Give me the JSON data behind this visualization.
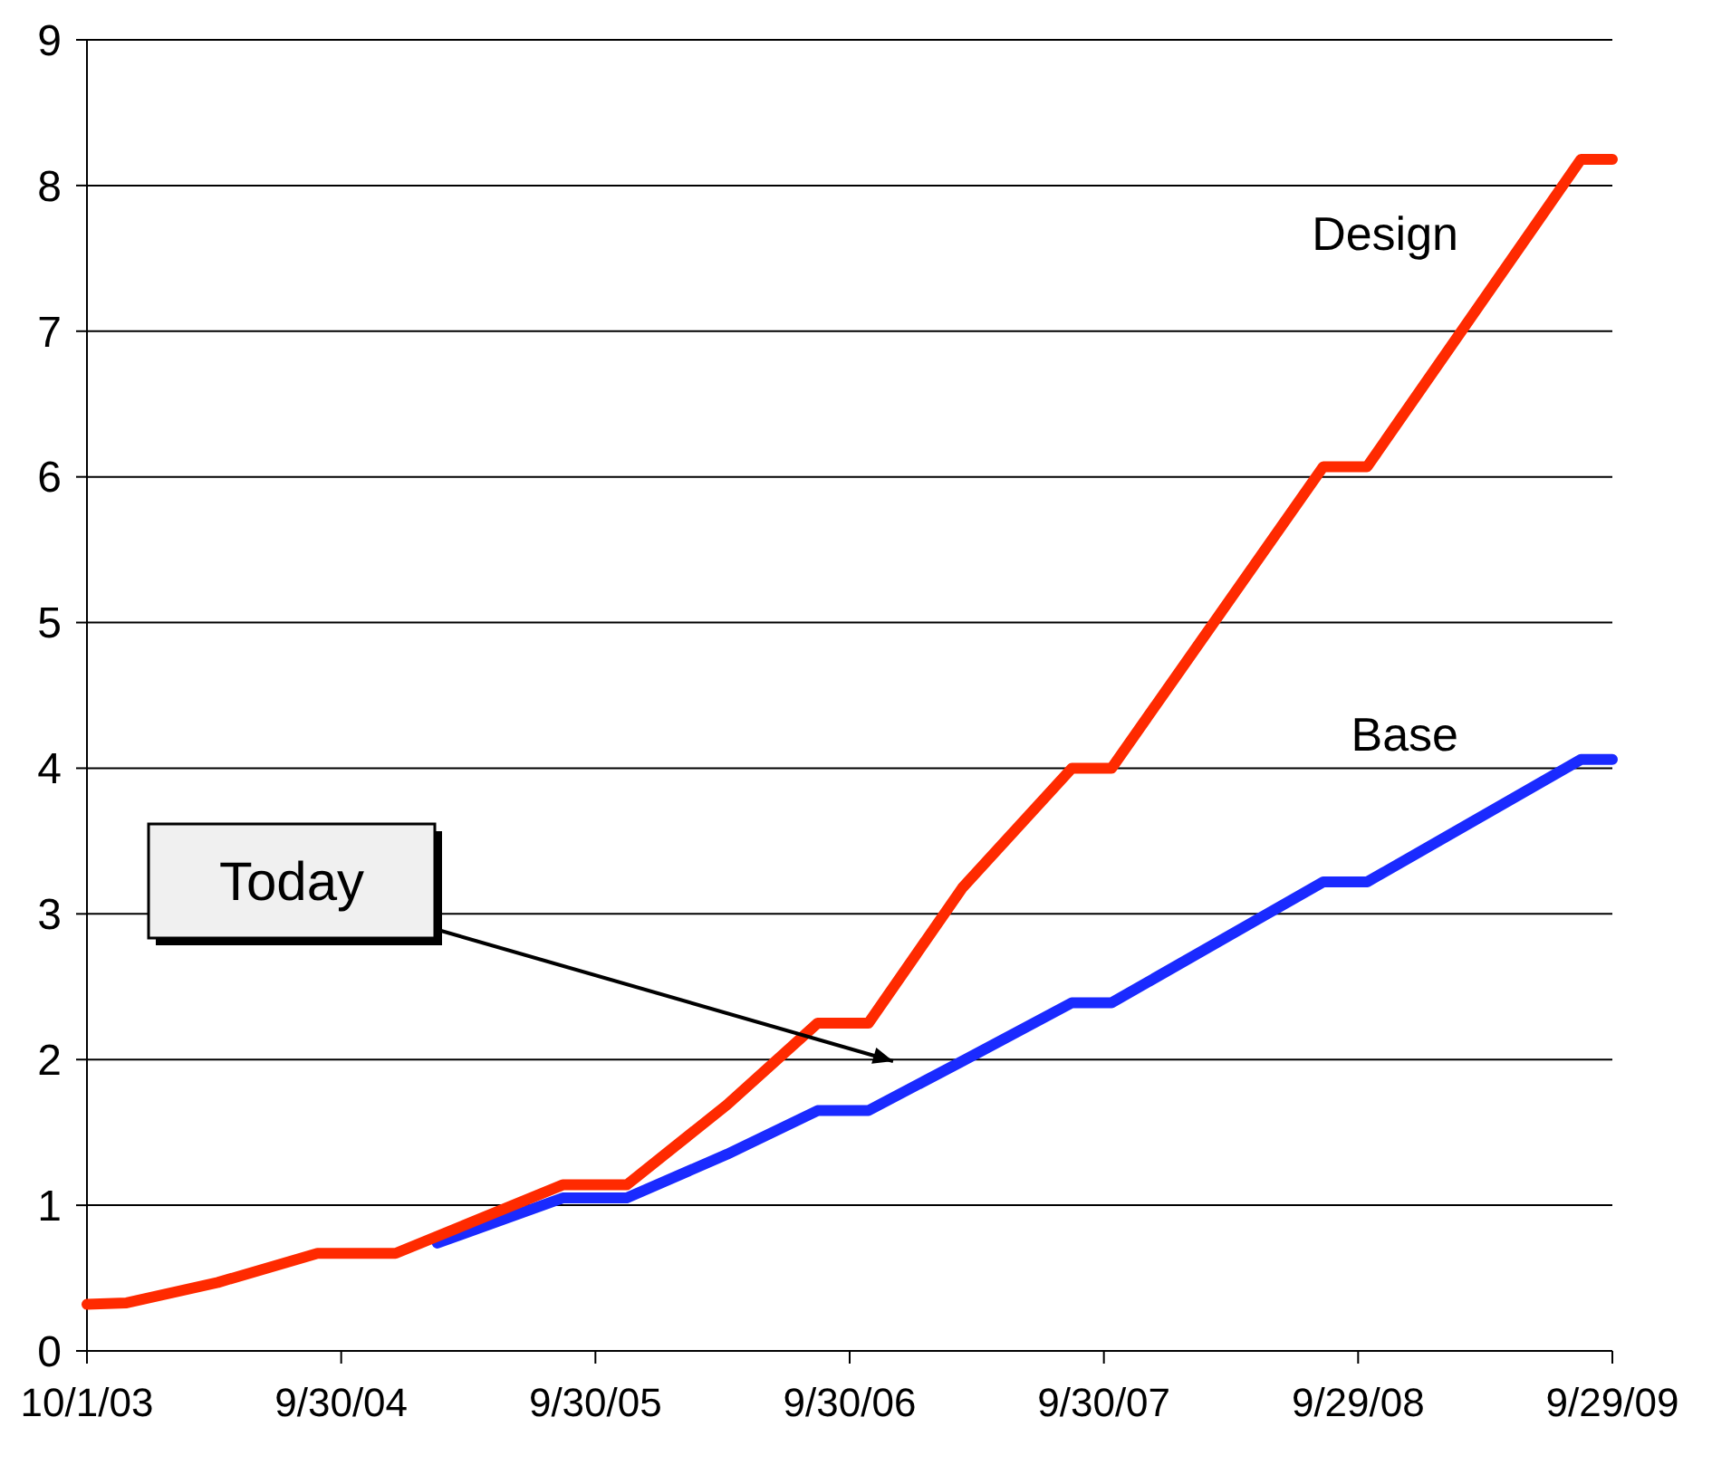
{
  "chart_data": {
    "type": "line",
    "x": [
      "2003-10-01",
      "2003-11-27",
      "2004-04-06",
      "2004-08-27",
      "2004-12-17",
      "2005-08-14",
      "2005-11-14",
      "2006-04-07",
      "2006-08-15",
      "2006-10-27",
      "2007-03-11",
      "2007-08-15",
      "2007-10-11",
      "2008-08-10",
      "2008-10-12",
      "2009-08-15",
      "2009-09-29"
    ],
    "series": [
      {
        "name": "Design",
        "color": "#ff2a00",
        "values": [
          0.32,
          0.33,
          0.47,
          0.67,
          0.67,
          1.14,
          1.14,
          1.69,
          2.25,
          2.25,
          3.18,
          4.0,
          4.0,
          6.07,
          6.07,
          8.18,
          8.18
        ]
      },
      {
        "name": "Base",
        "color": "#1a2aff",
        "x": [
          "2005-02-15",
          "2005-08-14",
          "2005-11-14",
          "2006-04-07",
          "2006-08-15",
          "2006-10-27",
          "2007-03-11",
          "2007-08-15",
          "2007-10-11",
          "2008-08-10",
          "2008-10-12",
          "2009-08-15",
          "2009-09-29"
        ],
        "values": [
          0.74,
          1.05,
          1.05,
          1.35,
          1.65,
          1.65,
          1.99,
          2.39,
          2.39,
          3.22,
          3.22,
          4.06,
          4.06
        ]
      }
    ],
    "xlim": [
      "2003-10-01",
      "2009-09-29"
    ],
    "xticks": [
      {
        "value": "2003-10-01",
        "label": "10/1/03"
      },
      {
        "value": "2004-09-30",
        "label": "9/30/04"
      },
      {
        "value": "2005-09-30",
        "label": "9/30/05"
      },
      {
        "value": "2006-09-30",
        "label": "9/30/06"
      },
      {
        "value": "2007-09-30",
        "label": "9/30/07"
      },
      {
        "value": "2008-09-29",
        "label": "9/29/08"
      },
      {
        "value": "2009-09-29",
        "label": "9/29/09"
      }
    ],
    "ylim": [
      0,
      9
    ],
    "yticks": [
      0,
      1,
      2,
      3,
      4,
      5,
      6,
      7,
      8,
      9
    ],
    "grid": "y",
    "legend": false,
    "marker": "none",
    "line_style": "solid",
    "annotations": [
      "Today"
    ]
  }
}
